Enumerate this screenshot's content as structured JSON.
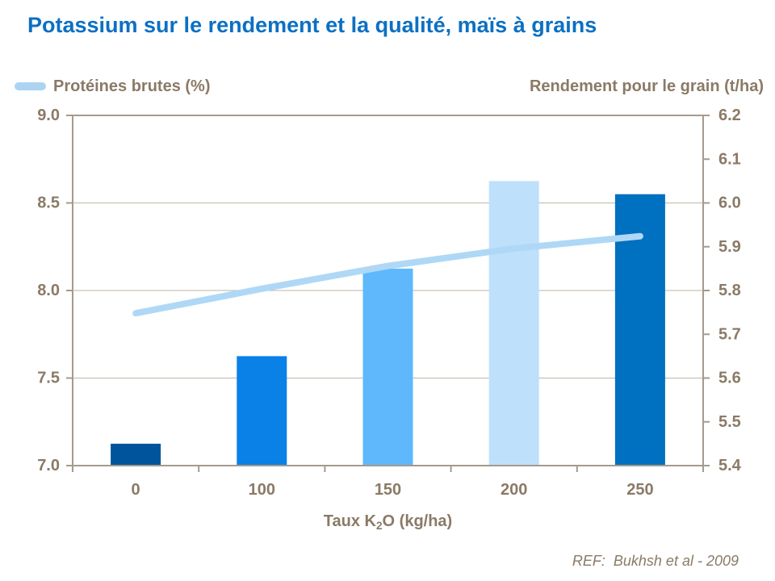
{
  "title": {
    "text": "Potassium sur le rendement et la qualité, maïs à grains",
    "color": "#0C70C4"
  },
  "legend": {
    "line_label": "Protéines brutes (%)",
    "swatch_color": "#ABD4F2"
  },
  "right_axis_title": "Rendement pour le grain (t/ha)",
  "x_axis": {
    "title_prefix": "Taux K",
    "title_sub": "2",
    "title_suffix": "O (kg/ha)"
  },
  "footer": {
    "ref_label": "REF:",
    "ref_spacer": "  ",
    "ref_text": "Bukhsh et al - 2009"
  },
  "colors": {
    "axis_text": "#8A7A66",
    "frame": "#A59A8C",
    "grid": "#BFB4A5",
    "tick": "#A59A8C",
    "line_series": "#AFD8F6"
  },
  "chart_data": {
    "type": "bar",
    "title": "Potassium sur le rendement et la qualité, maïs à grains",
    "xlabel": "Taux K2O (kg/ha)",
    "categories": [
      "0",
      "100",
      "150",
      "200",
      "250"
    ],
    "series": [
      {
        "name": "Rendement pour le grain (t/ha)",
        "type": "bar",
        "axis": "right",
        "values": [
          5.45,
          5.65,
          5.85,
          6.05,
          6.02
        ],
        "bar_colors": [
          "#00549C",
          "#0981E6",
          "#5FB8FC",
          "#BEE0FB",
          "#0070C0"
        ]
      },
      {
        "name": "Protéines brutes (%)",
        "type": "line",
        "axis": "left",
        "values": [
          7.87,
          8.01,
          8.14,
          8.24,
          8.31
        ],
        "color": "#AFD8F6"
      }
    ],
    "left_axis": {
      "label": "Protéines brutes (%)",
      "min": 7.0,
      "max": 9.0,
      "tick_values": [
        9.0,
        8.5,
        8.0,
        7.5,
        7.0
      ],
      "tick_labels": [
        "9.0",
        "8.5",
        "8.0",
        "7.5",
        "7.0"
      ]
    },
    "right_axis": {
      "label": "Rendement pour le grain (t/ha)",
      "min": 5.4,
      "max": 6.2,
      "tick_values": [
        6.2,
        6.1,
        6.0,
        5.9,
        5.8,
        5.7,
        5.6,
        5.5,
        5.4
      ],
      "tick_labels": [
        "6.2",
        "6.1",
        "6.0",
        "5.9",
        "5.8",
        "5.7",
        "5.6",
        "5.5",
        "5.4"
      ]
    },
    "gridlines_at_left_values": [
      8.5,
      8.0,
      7.5
    ],
    "legend_position": "top",
    "grid": true,
    "ref": "REF:  Bukhsh et al - 2009"
  }
}
